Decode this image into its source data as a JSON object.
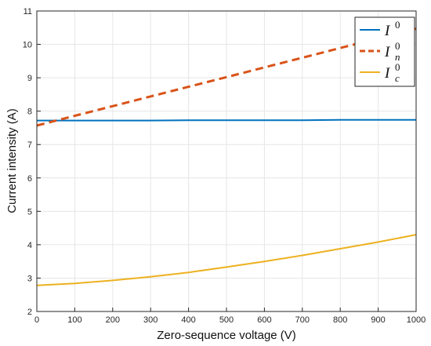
{
  "chart_data": {
    "type": "line",
    "xlabel": "Zero-sequence voltage (V)",
    "ylabel": "Current intensity (A)",
    "xlim": [
      0,
      1000
    ],
    "ylim": [
      2,
      11
    ],
    "x_ticks": [
      0,
      100,
      200,
      300,
      400,
      500,
      600,
      700,
      800,
      900,
      1000
    ],
    "y_ticks": [
      2,
      3,
      4,
      5,
      6,
      7,
      8,
      9,
      10,
      11
    ],
    "grid": true,
    "legend_position": "top-right",
    "x": [
      0,
      100,
      200,
      300,
      400,
      500,
      600,
      700,
      800,
      900,
      1000
    ],
    "series": [
      {
        "name": "I^0",
        "legend_base": "I",
        "legend_sup": "0",
        "legend_sub": "",
        "color": "#0072BD",
        "style": "solid",
        "values": [
          7.72,
          7.72,
          7.72,
          7.72,
          7.73,
          7.73,
          7.73,
          7.73,
          7.74,
          7.74,
          7.74
        ]
      },
      {
        "name": "I_n^0",
        "legend_base": "I",
        "legend_sup": "0",
        "legend_sub": "n",
        "color": "#D95319",
        "style": "dashed",
        "values": [
          7.57,
          7.86,
          8.15,
          8.44,
          8.73,
          9.02,
          9.31,
          9.6,
          9.89,
          10.18,
          10.47
        ]
      },
      {
        "name": "I_c^0",
        "legend_base": "I",
        "legend_sup": "0",
        "legend_sub": "c",
        "color": "#EDB120",
        "style": "solid",
        "values": [
          2.78,
          2.84,
          2.93,
          3.04,
          3.17,
          3.33,
          3.5,
          3.68,
          3.88,
          4.08,
          4.3
        ]
      }
    ]
  }
}
